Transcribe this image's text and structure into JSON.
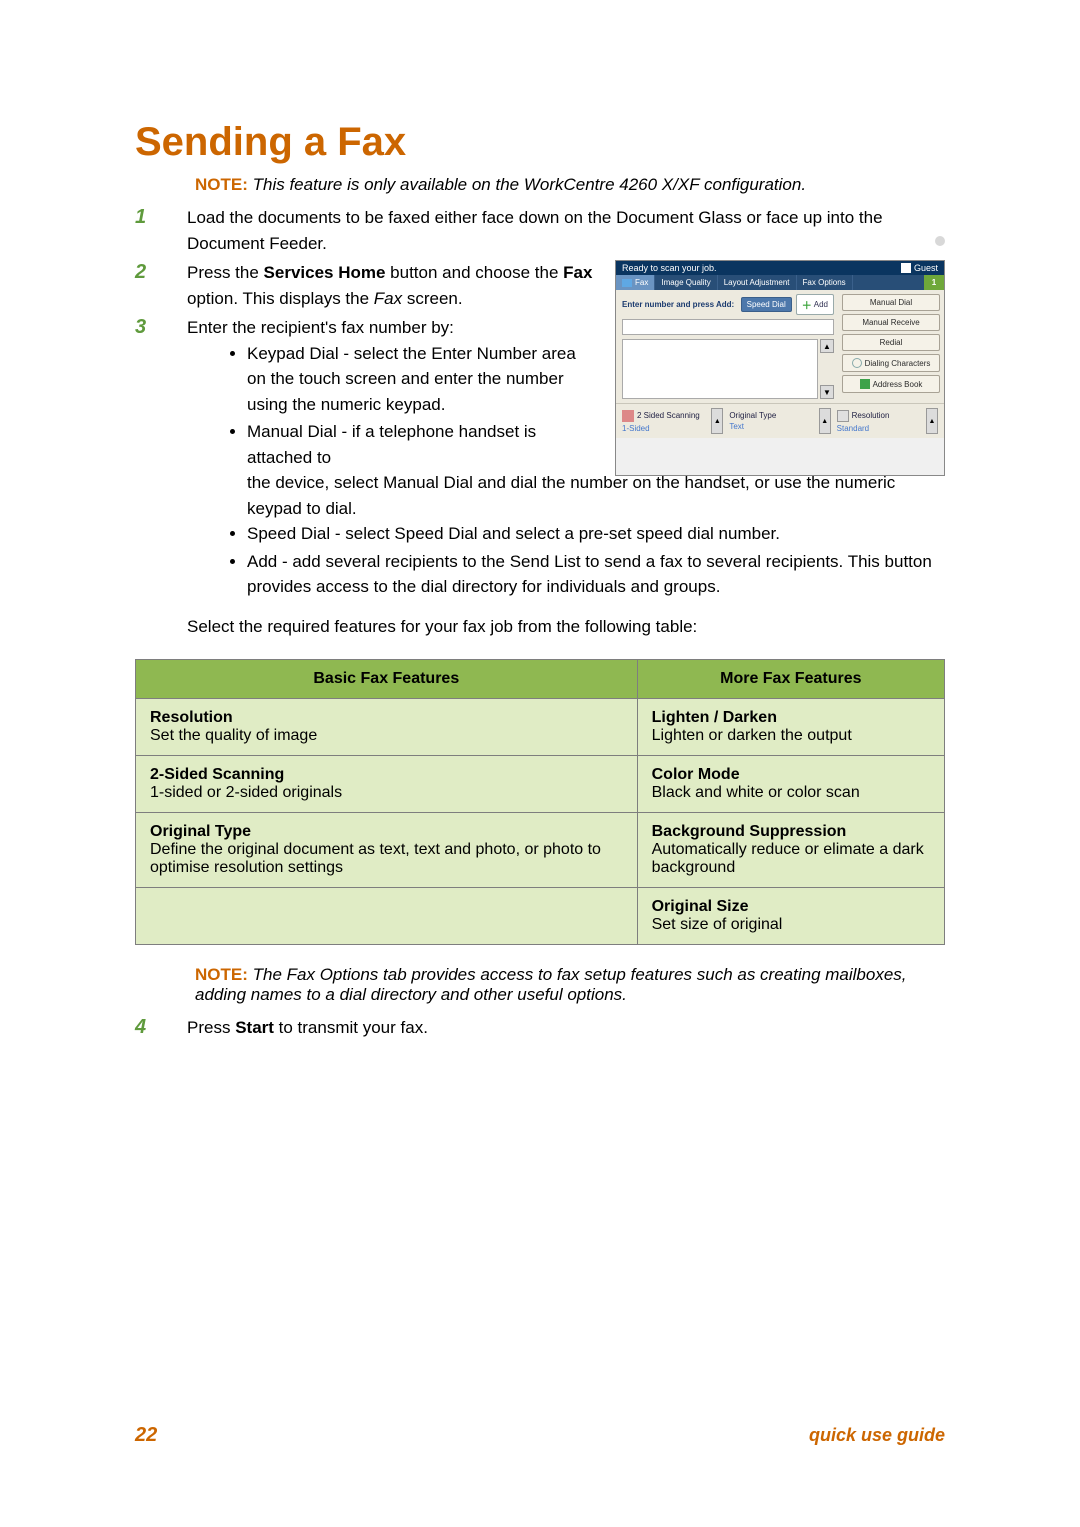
{
  "colors": {
    "accent": "#cc6600",
    "step_num": "#5f9a3c",
    "table_header_bg": "#8fb851",
    "table_cell_bg": "#e0ecc5",
    "footer": "#cc6600"
  },
  "heading": "Sending a Fax",
  "note1": {
    "label": "NOTE:",
    "text": "This feature is only available on the WorkCentre 4260 X/XF configuration."
  },
  "steps": {
    "s1": {
      "num": "1",
      "text_before": "Load the documents to be faxed either face down on the Document Glass or face up into the Document Feeder."
    },
    "s2": {
      "num": "2",
      "pre": "Press the ",
      "bold1": "Services Home",
      "mid": " button and choose the ",
      "bold2": "Fax",
      "post1": " option. This displays the ",
      "ital": "Fax",
      "post2": " screen."
    },
    "s3": {
      "num": "3",
      "intro": "Enter the recipient's fax number by:",
      "bullets": [
        "Keypad Dial - select the Enter Number area on the touch screen and enter the number using the numeric keypad.",
        "Manual Dial - if a telephone handset is attached to the device, select Manual Dial and dial the number on the handset, or use the numeric keypad to dial.",
        "Speed Dial - select Speed Dial and select a pre-set speed dial number.",
        "Add - add several recipients to the Send List to send a fax to several recipients. This button provides access to the dial directory for individuals and groups."
      ],
      "table_intro": "Select the required features for your fax job from the following table:"
    },
    "s4": {
      "num": "4",
      "pre": "Press ",
      "bold": "Start",
      "post": " to transmit your fax."
    }
  },
  "table": {
    "headers": {
      "basic": "Basic Fax Features",
      "more": "More Fax Features"
    },
    "rows": [
      {
        "lt": "Resolution",
        "ld": "Set the quality of image",
        "rt": "Lighten / Darken",
        "rd": "Lighten or darken the output"
      },
      {
        "lt": "2-Sided Scanning",
        "ld": "1-sided or 2-sided originals",
        "rt": "Color Mode",
        "rd": "Black and white or color scan"
      },
      {
        "lt": "Original Type",
        "ld": "Define the original document as text, text and photo, or photo to optimise resolution settings",
        "rt": "Background Suppression",
        "rd": "Automatically reduce or elimate a dark background"
      },
      {
        "lt": "",
        "ld": "",
        "rt": "Original Size",
        "rd": "Set size of original"
      }
    ]
  },
  "note2": {
    "label": "NOTE:",
    "text": "The Fax Options tab provides access to fax setup features such as creating mailboxes, adding names to a dial directory and other useful options."
  },
  "screenshot": {
    "top_status": "Ready to scan your job.",
    "guest": "Guest",
    "tabs": {
      "fax": "Fax",
      "iq": "Image Quality",
      "layout": "Layout Adjustment",
      "options": "Fax Options"
    },
    "count": "1",
    "enter_label": "Enter number and press Add:",
    "speed": "Speed Dial",
    "add": "Add",
    "right_buttons": {
      "manual_dial": "Manual Dial",
      "manual_receive": "Manual Receive",
      "redial": "Redial",
      "dialing_chars": "Dialing Characters",
      "address_book": "Address Book"
    },
    "bottom": {
      "scan_title": "2 Sided Scanning",
      "scan_sub": "1-Sided",
      "type_title": "Original Type",
      "type_sub": "Text",
      "res_title": "Resolution",
      "res_sub": "Standard"
    },
    "arrows": {
      "up": "▲",
      "down": "▼"
    }
  },
  "footer": {
    "page": "22",
    "guide": "quick use guide"
  }
}
